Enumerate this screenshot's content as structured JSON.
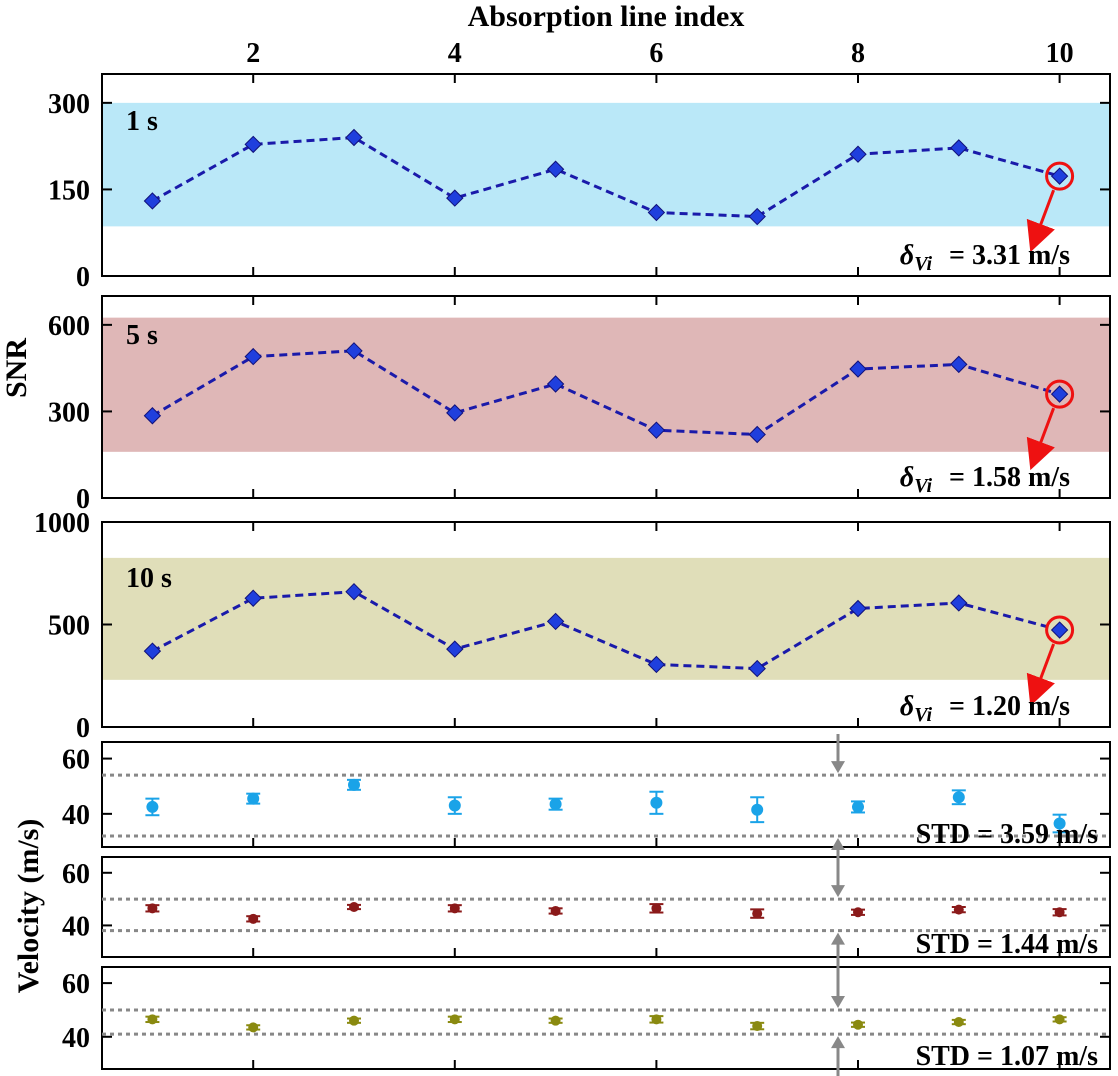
{
  "chart_data": {
    "type": "line",
    "title": "Absorption line index",
    "xlabel": "Absorption line index",
    "x": [
      1,
      2,
      3,
      4,
      5,
      6,
      7,
      8,
      9,
      10
    ],
    "x_top_ticks": [
      "2",
      "4",
      "6",
      "8",
      "10"
    ],
    "snr_axis_label": "SNR",
    "velocity_axis_label": "Velocity (m/s)",
    "snr_panels": [
      {
        "name": "snr-1s",
        "label": "1 s",
        "band_color": "#bae8f8",
        "ylim": [
          0,
          350
        ],
        "yticks": [
          "0",
          "150",
          "300"
        ],
        "band": [
          86,
          300
        ],
        "values": [
          130,
          228,
          240,
          135,
          185,
          110,
          103,
          211,
          222,
          173
        ],
        "delta_label": "δ",
        "delta_sub": "Vi",
        "delta_value": "= 3.31 m/s"
      },
      {
        "name": "snr-5s",
        "label": "5 s",
        "band_color": "#dfb7b7",
        "ylim": [
          0,
          700
        ],
        "yticks": [
          "0",
          "300",
          "600"
        ],
        "band": [
          160,
          625
        ],
        "values": [
          285,
          490,
          510,
          295,
          395,
          235,
          220,
          447,
          463,
          360
        ],
        "delta_label": "δ",
        "delta_sub": "Vi",
        "delta_value": "= 1.58 m/s"
      },
      {
        "name": "snr-10s",
        "label": "10 s",
        "band_color": "#e0deb9",
        "ylim": [
          0,
          1000
        ],
        "yticks": [
          "0",
          "500",
          "1000"
        ],
        "band": [
          230,
          825
        ],
        "values": [
          370,
          628,
          660,
          380,
          515,
          305,
          285,
          578,
          605,
          473
        ],
        "delta_label": "δ",
        "delta_sub": "Vi",
        "delta_value": "= 1.20 m/s"
      }
    ],
    "velocity_panels": [
      {
        "name": "velocity-1s",
        "color": "#1aa3e8",
        "ylim": [
          28,
          66
        ],
        "yticks": [
          "40",
          "60"
        ],
        "values": [
          42.5,
          45.5,
          50.5,
          43,
          43.5,
          44,
          41.5,
          42.5,
          46,
          36.5
        ],
        "errors": [
          3.0,
          1.8,
          1.8,
          3.0,
          2.0,
          4.0,
          4.5,
          2.0,
          2.5,
          3.2
        ],
        "dotted_lines": [
          54,
          32
        ],
        "std_value": "STD  = 3.59 m/s"
      },
      {
        "name": "velocity-5s",
        "color": "#8b1a1a",
        "ylim": [
          28,
          66
        ],
        "yticks": [
          "40",
          "60"
        ],
        "values": [
          46.5,
          42.5,
          47,
          46.5,
          45.5,
          46.5,
          44.5,
          45,
          46,
          45
        ],
        "errors": [
          1.2,
          1.0,
          0.8,
          1.2,
          1.0,
          1.6,
          1.6,
          1.0,
          1.0,
          1.2
        ],
        "dotted_lines": [
          50,
          38
        ],
        "std_value": "STD  = 1.44 m/s"
      },
      {
        "name": "velocity-10s",
        "color": "#8a8a10",
        "ylim": [
          28,
          66
        ],
        "yticks": [
          "40",
          "60"
        ],
        "values": [
          46.5,
          43.5,
          46,
          46.5,
          46,
          46.5,
          44,
          44.5,
          45.5,
          46.5
        ],
        "errors": [
          1.0,
          0.8,
          0.8,
          1.0,
          0.8,
          1.2,
          1.2,
          0.8,
          0.8,
          0.8
        ],
        "dotted_lines": [
          50,
          41
        ],
        "std_value": "STD  = 1.07 m/s"
      }
    ]
  }
}
